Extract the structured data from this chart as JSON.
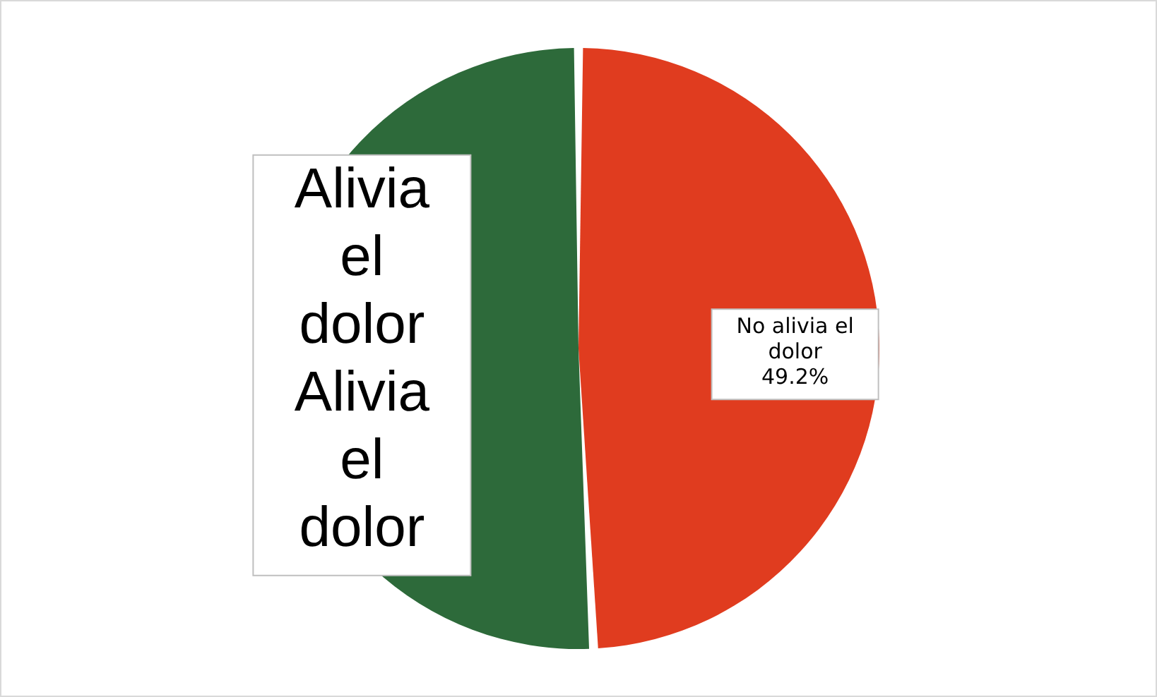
{
  "chart_data": {
    "type": "pie",
    "categories": [
      "No alivia el dolor",
      "Alivia el dolor"
    ],
    "values": [
      49.2,
      50.8
    ],
    "colors": [
      "#e03c1f",
      "#2d6a3a"
    ],
    "value_labels": [
      "49.2%",
      "Alivia el dolor"
    ]
  }
}
